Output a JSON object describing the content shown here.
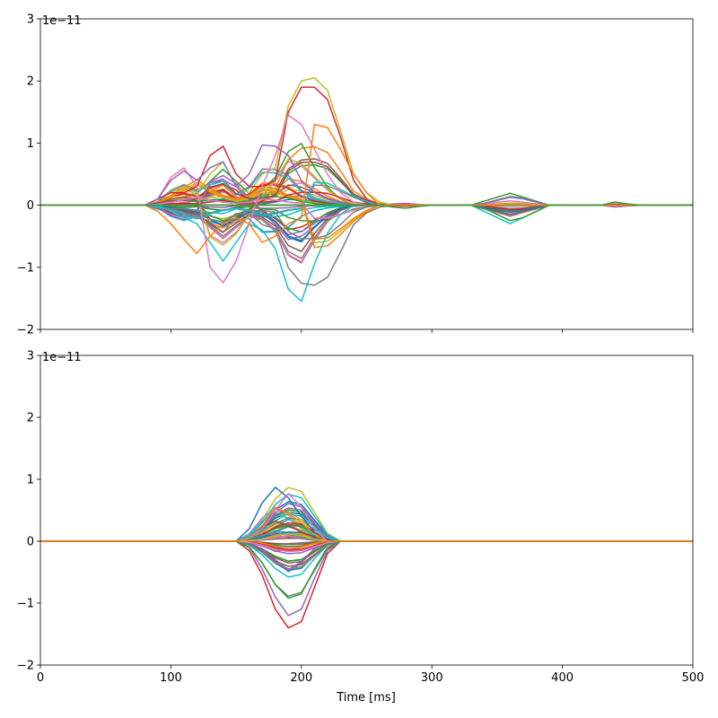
{
  "chart_data": [
    {
      "type": "line",
      "title": "",
      "xlabel": "",
      "ylabel": "",
      "xlim": [
        0,
        500
      ],
      "ylim": [
        -2,
        3
      ],
      "offset_label": "1e−11",
      "xticks": [
        0,
        100,
        200,
        300,
        400,
        500
      ],
      "xtick_labels_visible": false,
      "yticks": [
        -2,
        -1,
        0,
        1,
        2,
        3
      ],
      "ytick_labels": [
        "−2",
        "−1",
        "0",
        "1",
        "2",
        "3"
      ],
      "x": [
        0,
        10,
        20,
        30,
        40,
        50,
        60,
        70,
        80,
        90,
        100,
        110,
        120,
        130,
        140,
        150,
        160,
        170,
        180,
        190,
        200,
        210,
        220,
        230,
        240,
        250,
        260,
        270,
        280,
        290,
        300,
        310,
        320,
        330,
        340,
        350,
        360,
        370,
        380,
        390,
        400,
        410,
        420,
        430,
        440,
        450,
        460,
        470,
        480,
        490,
        500
      ],
      "series_count": 60,
      "extremes": {
        "max": 2.05,
        "min": -1.55
      },
      "representative_series": [
        {
          "color": "#bcbd22",
          "values": [
            0,
            0,
            0,
            0,
            0,
            0,
            0,
            0,
            0,
            0.1,
            0.2,
            0.3,
            0.2,
            0.5,
            0.7,
            0.3,
            0.2,
            0.5,
            0.6,
            1.6,
            2.0,
            2.05,
            1.85,
            1.2,
            0.5,
            0.2,
            0.05,
            0,
            0,
            0,
            0,
            0,
            0,
            0,
            0,
            0,
            0,
            0,
            0,
            0,
            0,
            0,
            0,
            0,
            0,
            0,
            0,
            0,
            0,
            0,
            0
          ]
        },
        {
          "color": "#d62728",
          "values": [
            0,
            0,
            0,
            0,
            0,
            0,
            0,
            0,
            0,
            0.1,
            0.2,
            0.2,
            0.3,
            0.8,
            0.95,
            0.5,
            0.3,
            0.3,
            0.4,
            1.5,
            1.9,
            1.9,
            1.7,
            1.1,
            0.4,
            0.1,
            0,
            0,
            0,
            0,
            0,
            0,
            0,
            0,
            0,
            0,
            0,
            0,
            0,
            0,
            0,
            0,
            0,
            0,
            0,
            0,
            0,
            0,
            0,
            0,
            0
          ]
        },
        {
          "color": "#17becf",
          "values": [
            0,
            0,
            0,
            0,
            0,
            0,
            0,
            0,
            0,
            0,
            -0.1,
            -0.2,
            -0.3,
            -0.6,
            -0.9,
            -0.6,
            -0.3,
            -0.4,
            -0.7,
            -1.35,
            -1.55,
            -0.95,
            -0.45,
            -0.15,
            0,
            0,
            0,
            0,
            0,
            0,
            0,
            0,
            0,
            0,
            -0.1,
            -0.2,
            -0.3,
            -0.2,
            -0.1,
            0,
            0,
            0,
            0,
            0,
            0,
            0,
            0,
            0,
            0,
            0,
            0
          ]
        },
        {
          "color": "#e377c2",
          "values": [
            0,
            0,
            0,
            0,
            0,
            0,
            0,
            0,
            0,
            0.1,
            0.45,
            0.6,
            0.3,
            -1.0,
            -1.25,
            -0.9,
            -0.3,
            0.3,
            0.8,
            1.45,
            1.3,
            0.9,
            0.5,
            0.2,
            0.05,
            0,
            0,
            0,
            0,
            0,
            0,
            0,
            0,
            0,
            0,
            0,
            0,
            0,
            0,
            0,
            0,
            0,
            0,
            0,
            0,
            0,
            0,
            0,
            0,
            0,
            0
          ]
        },
        {
          "color": "#9467bd",
          "values": [
            0,
            0,
            0,
            0,
            0,
            0,
            0,
            0,
            0,
            0.1,
            0.4,
            0.55,
            0.4,
            0.6,
            0.7,
            0.3,
            0.5,
            0.97,
            0.95,
            0.8,
            0.4,
            0.2,
            0.1,
            0.05,
            0,
            0,
            0,
            0,
            0,
            0,
            0,
            0,
            0,
            0,
            0,
            0,
            0,
            0,
            0,
            0,
            0,
            0,
            0,
            0,
            0,
            0,
            0,
            0,
            0,
            0,
            0
          ]
        },
        {
          "color": "#ff7f0e",
          "values": [
            0,
            0,
            0,
            0,
            0,
            0,
            0,
            0,
            0,
            -0.1,
            -0.3,
            -0.55,
            -0.78,
            -0.5,
            -0.3,
            -0.2,
            -0.3,
            -0.6,
            -0.5,
            -0.3,
            -0.2,
            1.3,
            1.25,
            0.9,
            0.5,
            0.2,
            0,
            0,
            0,
            0,
            0,
            0,
            0,
            0,
            0,
            0,
            0,
            0,
            0,
            0,
            0,
            0,
            0,
            0,
            0,
            0,
            0,
            0,
            0,
            0,
            0
          ]
        },
        {
          "color": "#2ca02c",
          "values": [
            0,
            0,
            0,
            0,
            0,
            0,
            0,
            0,
            0,
            0,
            0,
            0,
            0,
            0,
            0,
            0,
            0,
            0,
            0,
            0,
            0,
            0,
            0,
            0,
            0,
            0,
            0,
            -0.03,
            -0.05,
            -0.02,
            0,
            0,
            0,
            0,
            -0.05,
            -0.15,
            -0.25,
            -0.2,
            -0.1,
            0,
            0,
            0,
            0,
            0,
            0.05,
            0.02,
            0,
            0,
            0,
            0,
            0
          ]
        }
      ]
    },
    {
      "type": "line",
      "title": "",
      "xlabel": "Time [ms]",
      "ylabel": "",
      "xlim": [
        0,
        500
      ],
      "ylim": [
        -2,
        3
      ],
      "offset_label": "1e−11",
      "xticks": [
        0,
        100,
        200,
        300,
        400,
        500
      ],
      "xtick_labels": [
        "0",
        "100",
        "200",
        "300",
        "400",
        "500"
      ],
      "yticks": [
        -2,
        -1,
        0,
        1,
        2,
        3
      ],
      "ytick_labels": [
        "−2",
        "−1",
        "0",
        "1",
        "2",
        "3"
      ],
      "x": [
        0,
        10,
        20,
        30,
        40,
        50,
        60,
        70,
        80,
        90,
        100,
        110,
        120,
        130,
        140,
        150,
        160,
        170,
        180,
        190,
        200,
        210,
        220,
        230,
        240,
        250,
        260,
        270,
        280,
        290,
        300,
        310,
        320,
        330,
        340,
        350,
        360,
        370,
        380,
        390,
        400,
        410,
        420,
        430,
        440,
        450,
        460,
        470,
        480,
        490,
        500
      ],
      "series_count": 60,
      "extremes": {
        "max": 0.87,
        "min": -1.4
      },
      "representative_series": [
        {
          "color": "#1f77b4",
          "values": [
            0,
            0,
            0,
            0,
            0,
            0,
            0,
            0,
            0,
            0,
            0,
            0,
            0,
            0,
            0,
            0,
            0.2,
            0.62,
            0.87,
            0.7,
            0.4,
            0.15,
            0,
            0,
            0,
            0,
            0,
            0,
            0,
            0,
            0,
            0,
            0,
            0,
            0,
            0,
            0,
            0,
            0,
            0,
            0,
            0,
            0,
            0,
            0,
            0,
            0,
            0,
            0,
            0,
            0
          ]
        },
        {
          "color": "#e377c2",
          "values": [
            0,
            0,
            0,
            0,
            0,
            0,
            0,
            0,
            0,
            0,
            0,
            0,
            0,
            0,
            0,
            0,
            0.05,
            0.2,
            0.5,
            0.77,
            0.55,
            0.2,
            0,
            0,
            0,
            0,
            0,
            0,
            0,
            0,
            0,
            0,
            0,
            0,
            0,
            0,
            0,
            0,
            0,
            0,
            0,
            0,
            0,
            0,
            0,
            0,
            0,
            0,
            0,
            0,
            0
          ]
        },
        {
          "color": "#d62728",
          "values": [
            0,
            0,
            0,
            0,
            0,
            0,
            0,
            0,
            0,
            0,
            0,
            0,
            0,
            0,
            0,
            0,
            -0.15,
            -0.55,
            -1.1,
            -1.4,
            -1.3,
            -0.75,
            -0.2,
            0,
            0,
            0,
            0,
            0,
            0,
            0,
            0,
            0,
            0,
            0,
            0,
            0,
            0,
            0,
            0,
            0,
            0,
            0,
            0,
            0,
            0,
            0,
            0,
            0,
            0,
            0,
            0
          ]
        },
        {
          "color": "#9467bd",
          "values": [
            0,
            0,
            0,
            0,
            0,
            0,
            0,
            0,
            0,
            0,
            0,
            0,
            0,
            0,
            0,
            0,
            -0.1,
            -0.45,
            -0.9,
            -1.2,
            -1.1,
            -0.6,
            -0.15,
            0,
            0,
            0,
            0,
            0,
            0,
            0,
            0,
            0,
            0,
            0,
            0,
            0,
            0,
            0,
            0,
            0,
            0,
            0,
            0,
            0,
            0,
            0,
            0,
            0,
            0,
            0,
            0
          ]
        },
        {
          "color": "#2ca02c",
          "values": [
            0,
            0,
            0,
            0,
            0,
            0,
            0,
            0,
            0,
            0,
            0,
            0,
            0,
            0,
            0,
            0,
            -0.1,
            -0.35,
            -0.7,
            -0.92,
            -0.85,
            -0.45,
            -0.1,
            0,
            0,
            0,
            0,
            0,
            0,
            0,
            0,
            0,
            0,
            0,
            0,
            0,
            0,
            0,
            0,
            0,
            0,
            0,
            0,
            0,
            0,
            0,
            0,
            0,
            0,
            0,
            0
          ]
        },
        {
          "color": "#ff7f0e",
          "values": [
            0,
            0,
            0,
            0,
            0,
            0,
            0,
            0,
            0,
            0,
            0,
            0,
            0,
            0,
            0,
            0,
            0.05,
            0.25,
            0.55,
            0.45,
            0.3,
            0.1,
            0,
            0,
            0,
            0,
            0,
            0,
            0,
            0,
            0,
            0,
            0,
            0,
            0,
            0,
            0,
            0,
            0,
            0,
            0,
            0,
            0,
            0,
            0,
            0,
            0,
            0,
            0,
            0,
            0
          ]
        }
      ]
    }
  ],
  "palette": [
    "#1f77b4",
    "#ff7f0e",
    "#2ca02c",
    "#d62728",
    "#9467bd",
    "#8c564b",
    "#e377c2",
    "#7f7f7f",
    "#bcbd22",
    "#17becf"
  ]
}
